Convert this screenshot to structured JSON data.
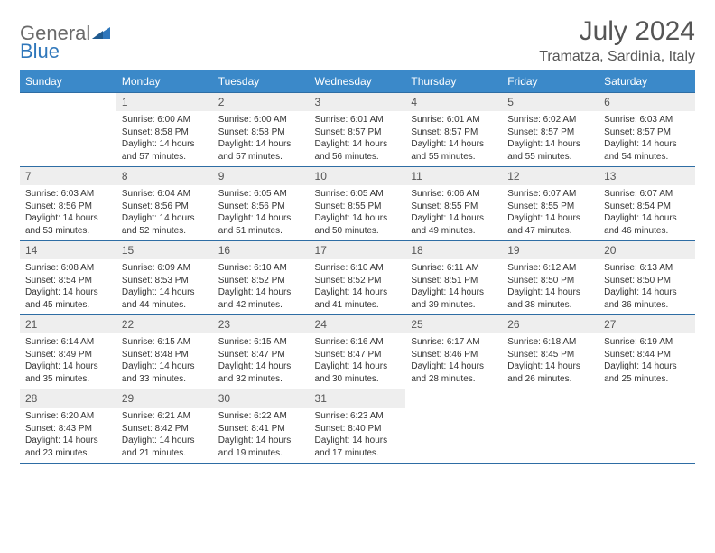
{
  "brand": {
    "part1": "General",
    "part2": "Blue",
    "triangle_color": "#2f77bb"
  },
  "title": "July 2024",
  "location": "Tramatza, Sardinia, Italy",
  "header_bg": "#3b89c9",
  "divider_color": "#2e6da4",
  "daynum_bg": "#eeeeee",
  "weekdays": [
    "Sunday",
    "Monday",
    "Tuesday",
    "Wednesday",
    "Thursday",
    "Friday",
    "Saturday"
  ],
  "weeks": [
    [
      null,
      {
        "n": "1",
        "sr": "6:00 AM",
        "ss": "8:58 PM",
        "dl": "14 hours and 57 minutes."
      },
      {
        "n": "2",
        "sr": "6:00 AM",
        "ss": "8:58 PM",
        "dl": "14 hours and 57 minutes."
      },
      {
        "n": "3",
        "sr": "6:01 AM",
        "ss": "8:57 PM",
        "dl": "14 hours and 56 minutes."
      },
      {
        "n": "4",
        "sr": "6:01 AM",
        "ss": "8:57 PM",
        "dl": "14 hours and 55 minutes."
      },
      {
        "n": "5",
        "sr": "6:02 AM",
        "ss": "8:57 PM",
        "dl": "14 hours and 55 minutes."
      },
      {
        "n": "6",
        "sr": "6:03 AM",
        "ss": "8:57 PM",
        "dl": "14 hours and 54 minutes."
      }
    ],
    [
      {
        "n": "7",
        "sr": "6:03 AM",
        "ss": "8:56 PM",
        "dl": "14 hours and 53 minutes."
      },
      {
        "n": "8",
        "sr": "6:04 AM",
        "ss": "8:56 PM",
        "dl": "14 hours and 52 minutes."
      },
      {
        "n": "9",
        "sr": "6:05 AM",
        "ss": "8:56 PM",
        "dl": "14 hours and 51 minutes."
      },
      {
        "n": "10",
        "sr": "6:05 AM",
        "ss": "8:55 PM",
        "dl": "14 hours and 50 minutes."
      },
      {
        "n": "11",
        "sr": "6:06 AM",
        "ss": "8:55 PM",
        "dl": "14 hours and 49 minutes."
      },
      {
        "n": "12",
        "sr": "6:07 AM",
        "ss": "8:55 PM",
        "dl": "14 hours and 47 minutes."
      },
      {
        "n": "13",
        "sr": "6:07 AM",
        "ss": "8:54 PM",
        "dl": "14 hours and 46 minutes."
      }
    ],
    [
      {
        "n": "14",
        "sr": "6:08 AM",
        "ss": "8:54 PM",
        "dl": "14 hours and 45 minutes."
      },
      {
        "n": "15",
        "sr": "6:09 AM",
        "ss": "8:53 PM",
        "dl": "14 hours and 44 minutes."
      },
      {
        "n": "16",
        "sr": "6:10 AM",
        "ss": "8:52 PM",
        "dl": "14 hours and 42 minutes."
      },
      {
        "n": "17",
        "sr": "6:10 AM",
        "ss": "8:52 PM",
        "dl": "14 hours and 41 minutes."
      },
      {
        "n": "18",
        "sr": "6:11 AM",
        "ss": "8:51 PM",
        "dl": "14 hours and 39 minutes."
      },
      {
        "n": "19",
        "sr": "6:12 AM",
        "ss": "8:50 PM",
        "dl": "14 hours and 38 minutes."
      },
      {
        "n": "20",
        "sr": "6:13 AM",
        "ss": "8:50 PM",
        "dl": "14 hours and 36 minutes."
      }
    ],
    [
      {
        "n": "21",
        "sr": "6:14 AM",
        "ss": "8:49 PM",
        "dl": "14 hours and 35 minutes."
      },
      {
        "n": "22",
        "sr": "6:15 AM",
        "ss": "8:48 PM",
        "dl": "14 hours and 33 minutes."
      },
      {
        "n": "23",
        "sr": "6:15 AM",
        "ss": "8:47 PM",
        "dl": "14 hours and 32 minutes."
      },
      {
        "n": "24",
        "sr": "6:16 AM",
        "ss": "8:47 PM",
        "dl": "14 hours and 30 minutes."
      },
      {
        "n": "25",
        "sr": "6:17 AM",
        "ss": "8:46 PM",
        "dl": "14 hours and 28 minutes."
      },
      {
        "n": "26",
        "sr": "6:18 AM",
        "ss": "8:45 PM",
        "dl": "14 hours and 26 minutes."
      },
      {
        "n": "27",
        "sr": "6:19 AM",
        "ss": "8:44 PM",
        "dl": "14 hours and 25 minutes."
      }
    ],
    [
      {
        "n": "28",
        "sr": "6:20 AM",
        "ss": "8:43 PM",
        "dl": "14 hours and 23 minutes."
      },
      {
        "n": "29",
        "sr": "6:21 AM",
        "ss": "8:42 PM",
        "dl": "14 hours and 21 minutes."
      },
      {
        "n": "30",
        "sr": "6:22 AM",
        "ss": "8:41 PM",
        "dl": "14 hours and 19 minutes."
      },
      {
        "n": "31",
        "sr": "6:23 AM",
        "ss": "8:40 PM",
        "dl": "14 hours and 17 minutes."
      },
      null,
      null,
      null
    ]
  ],
  "labels": {
    "sunrise": "Sunrise:",
    "sunset": "Sunset:",
    "daylight": "Daylight:"
  }
}
